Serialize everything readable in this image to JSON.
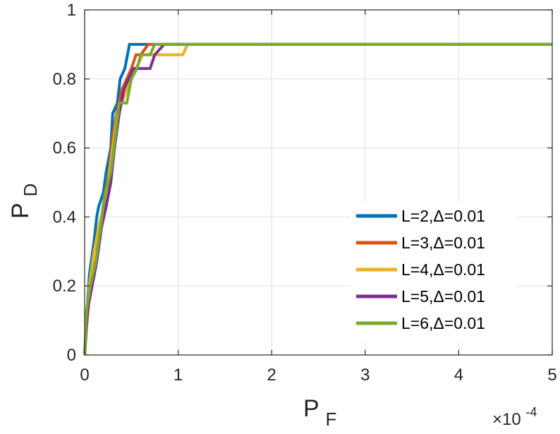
{
  "chart_data": {
    "type": "line",
    "xlabel_main": "P",
    "xlabel_sub": "F",
    "ylabel_main": "P",
    "ylabel_sub": "D",
    "x_exponent_base": "×10",
    "x_exponent_power": "-4",
    "xlim": [
      0,
      5
    ],
    "ylim": [
      0,
      1
    ],
    "xticks": [
      0,
      1,
      2,
      3,
      4,
      5
    ],
    "yticks": [
      0,
      0.2,
      0.4,
      0.6,
      0.8,
      1
    ],
    "xtick_labels": [
      "0",
      "1",
      "2",
      "3",
      "4",
      "5"
    ],
    "ytick_labels": [
      "0",
      "0.2",
      "0.4",
      "0.6",
      "0.8",
      "1"
    ],
    "grid": true,
    "legend_position": "bottom-right",
    "series": [
      {
        "name": "L=2,Δ=0.01",
        "color": "#0072BD",
        "points": [
          [
            0,
            0
          ],
          [
            0.02,
            0.1
          ],
          [
            0.05,
            0.23
          ],
          [
            0.1,
            0.33
          ],
          [
            0.13,
            0.4
          ],
          [
            0.15,
            0.43
          ],
          [
            0.2,
            0.47
          ],
          [
            0.23,
            0.53
          ],
          [
            0.28,
            0.6
          ],
          [
            0.3,
            0.7
          ],
          [
            0.35,
            0.73
          ],
          [
            0.38,
            0.8
          ],
          [
            0.43,
            0.83
          ],
          [
            0.48,
            0.9
          ],
          [
            5,
            0.9
          ]
        ]
      },
      {
        "name": "L=3,Δ=0.01",
        "color": "#D95319",
        "points": [
          [
            0,
            0
          ],
          [
            0.02,
            0.08
          ],
          [
            0.06,
            0.2
          ],
          [
            0.1,
            0.3
          ],
          [
            0.14,
            0.33
          ],
          [
            0.18,
            0.4
          ],
          [
            0.22,
            0.47
          ],
          [
            0.26,
            0.53
          ],
          [
            0.3,
            0.63
          ],
          [
            0.34,
            0.7
          ],
          [
            0.4,
            0.77
          ],
          [
            0.45,
            0.8
          ],
          [
            0.5,
            0.83
          ],
          [
            0.55,
            0.87
          ],
          [
            0.6,
            0.87
          ],
          [
            0.68,
            0.9
          ],
          [
            5,
            0.9
          ]
        ]
      },
      {
        "name": "L=4,Δ=0.01",
        "color": "#EDB120",
        "points": [
          [
            0,
            0
          ],
          [
            0.02,
            0.1
          ],
          [
            0.05,
            0.2
          ],
          [
            0.1,
            0.3
          ],
          [
            0.15,
            0.37
          ],
          [
            0.2,
            0.43
          ],
          [
            0.25,
            0.5
          ],
          [
            0.3,
            0.6
          ],
          [
            0.35,
            0.7
          ],
          [
            0.4,
            0.73
          ],
          [
            0.45,
            0.77
          ],
          [
            0.5,
            0.8
          ],
          [
            0.55,
            0.83
          ],
          [
            0.62,
            0.87
          ],
          [
            1.05,
            0.87
          ],
          [
            1.1,
            0.9
          ],
          [
            5,
            0.9
          ]
        ]
      },
      {
        "name": "L=5,Δ=0.01",
        "color": "#7E2F8E",
        "points": [
          [
            0,
            0
          ],
          [
            0.03,
            0.13
          ],
          [
            0.08,
            0.2
          ],
          [
            0.13,
            0.27
          ],
          [
            0.18,
            0.37
          ],
          [
            0.23,
            0.43
          ],
          [
            0.28,
            0.5
          ],
          [
            0.32,
            0.6
          ],
          [
            0.37,
            0.7
          ],
          [
            0.42,
            0.77
          ],
          [
            0.47,
            0.8
          ],
          [
            0.52,
            0.83
          ],
          [
            0.6,
            0.83
          ],
          [
            0.7,
            0.83
          ],
          [
            0.75,
            0.87
          ],
          [
            0.85,
            0.9
          ],
          [
            5,
            0.9
          ]
        ]
      },
      {
        "name": "L=6,Δ=0.01",
        "color": "#77AC30",
        "points": [
          [
            0,
            0
          ],
          [
            0.02,
            0.13
          ],
          [
            0.06,
            0.2
          ],
          [
            0.12,
            0.27
          ],
          [
            0.17,
            0.37
          ],
          [
            0.22,
            0.47
          ],
          [
            0.28,
            0.53
          ],
          [
            0.3,
            0.57
          ],
          [
            0.37,
            0.73
          ],
          [
            0.45,
            0.73
          ],
          [
            0.5,
            0.8
          ],
          [
            0.56,
            0.83
          ],
          [
            0.6,
            0.87
          ],
          [
            0.7,
            0.87
          ],
          [
            0.75,
            0.9
          ],
          [
            5,
            0.9
          ]
        ]
      }
    ]
  }
}
